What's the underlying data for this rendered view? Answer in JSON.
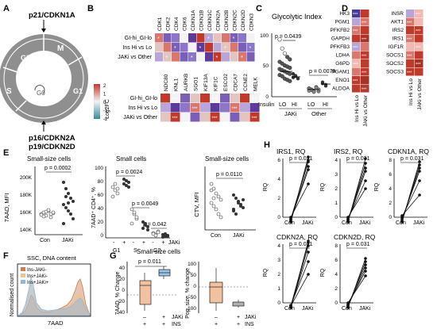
{
  "panels": {
    "A": {
      "letter": "A",
      "phases": [
        "M",
        "G2",
        "S",
        "G1",
        "G0"
      ],
      "top_label": "p21/CDKN1A",
      "bottom_label_1": "p16/CDKN2A",
      "bottom_label_2": "p19/CDKN2D"
    },
    "B": {
      "letter": "B",
      "genes_top": [
        "CDK1",
        "CDK2",
        "CDK4",
        "CDK6",
        "CDKN1A",
        "CDKN1B",
        "CDKN1C",
        "CDKN2A",
        "CDKN2B",
        "CDKN2C",
        "CDKN2D",
        "CDKN3"
      ],
      "genes_bottom": [
        "NDC80",
        "KNL1",
        "AURKB",
        "SGO1",
        "KIF13A",
        "KIF1C",
        "ESCO2",
        "CDCA7",
        "CCNE2",
        "MELK"
      ],
      "rows": [
        "GI-hi_GI-lo",
        "Ins Hi vs Lo",
        "JAKi vs Other"
      ],
      "legend_label": "Log2FC",
      "legend_ticks": [
        "2",
        "1",
        "0",
        "-1",
        "-2"
      ],
      "colors": {
        "high": "#c0392b",
        "mid": "#f2f2f2",
        "low": "#5b3a9b"
      }
    },
    "C": {
      "letter": "C",
      "title": "Glycolytic Index",
      "pvalues": [
        "p = 0.0439",
        "p = 0.0079"
      ],
      "y_ticks": [
        "0",
        "50",
        "100"
      ],
      "x_labels": [
        "LO",
        "HI",
        "LO",
        "HI"
      ],
      "row_label": "Insulin",
      "groups": [
        "JAKi",
        "Other"
      ]
    },
    "D": {
      "letter": "D",
      "genes_left": [
        "HK3",
        "PGM1",
        "PFKFB2",
        "GAPDH",
        "PFKFB3",
        "LDHA",
        "G6PD",
        "PGAM1",
        "ENO1",
        "ALDOA"
      ],
      "genes_right": [
        "INSR",
        "AKT1",
        "IRS2",
        "IRS1",
        "IGF1R",
        "SOCS1",
        "SOCS2",
        "SOCS3"
      ],
      "col_labels": [
        "Ins Hi vs Lo",
        "JAKi vs Other"
      ],
      "star": "***"
    },
    "E": {
      "letter": "E",
      "panel1_title": "Small-size cells",
      "panel1_pvalue": "p = 0.0002",
      "panel1_ylabel": "7AAD, MFI",
      "panel1_yticks": [
        "200K",
        "180K",
        "160K",
        "140K"
      ],
      "panel1_xlabels": [
        "Con",
        "JAKi"
      ],
      "panel2_title": "Small cells",
      "panel2_pvalues": [
        "p = 0.0024",
        "p = 0.0049",
        "p = 0.042"
      ],
      "panel2_ylabel": "7AAD⁺ CD4⁺, %",
      "panel2_yticks": [
        "100",
        "80",
        "60",
        "40",
        "20",
        "0"
      ],
      "panel2_xlabels": [
        "G1",
        "S",
        "G2"
      ],
      "panel2_jaki_signs": [
        "-",
        "+",
        "-",
        "+",
        "-",
        "+"
      ],
      "panel2_jaki_label": "JAKi",
      "panel3_title": "Small-size cells",
      "panel3_pvalue": "p = 0.0110",
      "panel3_ylabel": "CTV, MFI",
      "panel3_xlabels": [
        "Con",
        "JAKi"
      ]
    },
    "F": {
      "letter": "F",
      "title": "SSC, DNA content",
      "ylabel": "Normalised count",
      "xlabel": "7AAD",
      "legend": [
        "Ins-JAKi-",
        "Ins+JAKi-",
        "Ins+JAKi+"
      ],
      "legend_colors": [
        "#c97c4e",
        "#e8c48f",
        "#8fb7dd"
      ]
    },
    "G": {
      "letter": "G",
      "title": "Small-size cells",
      "pvalue": "p = 0.011",
      "ylabel1": "7AAD, % Change",
      "ylabel2": "Pop. size, % change",
      "yticks1": [
        "40",
        "20",
        "0",
        "-20",
        "-40"
      ],
      "yticks2": [
        "100",
        "50",
        "0",
        "-50",
        "-100"
      ],
      "row1_label": "JAKi",
      "row2_label": "INS",
      "signs": [
        "+",
        "+",
        "–",
        "+"
      ]
    },
    "H": {
      "letter": "H",
      "plots": [
        {
          "title": "IRS1, RQ",
          "pvalue": "p = 0.031",
          "yticks": [
            "6",
            "4",
            "2",
            "0"
          ],
          "ylabel": "RQ"
        },
        {
          "title": "IRS2, RQ",
          "pvalue": "p = 0.031",
          "yticks": [
            "4",
            "3",
            "2",
            "1",
            "0"
          ],
          "ylabel": "RQ"
        },
        {
          "title": "CDKN1A, RQ",
          "pvalue": "p = 0.031",
          "yticks": [
            "8",
            "6",
            "4",
            "2",
            "0"
          ],
          "ylabel": "RQ"
        },
        {
          "title": "CDKN2A, RQ",
          "pvalue": "p = 0.031",
          "yticks": [
            "4",
            "3",
            "2",
            "1",
            "0"
          ],
          "ylabel": "RQ"
        },
        {
          "title": "CDKN2D, RQ",
          "pvalue": "p = 0.031",
          "yticks": [
            "8",
            "6",
            "4",
            "2",
            "0"
          ],
          "ylabel": "RQ"
        }
      ],
      "xlabels": [
        "Con",
        "JAKi"
      ]
    }
  }
}
